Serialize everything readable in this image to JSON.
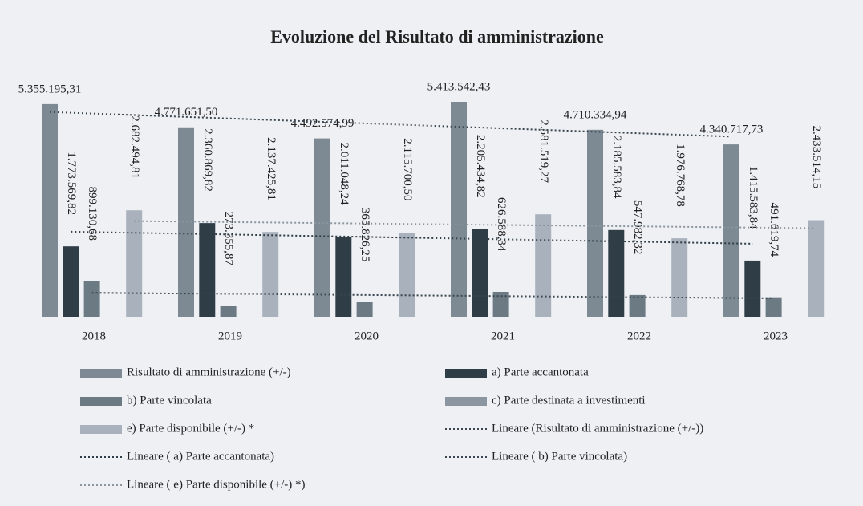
{
  "chart_data": {
    "type": "bar",
    "title": "Evoluzione del Risultato di amministrazione",
    "categories": [
      "2018",
      "2019",
      "2020",
      "2021",
      "2022",
      "2023"
    ],
    "series": [
      {
        "name": "Risultato di amministrazione (+/-)",
        "color": "#7d8a93",
        "values": [
          5355195.31,
          4771651.5,
          4492574.99,
          5413542.43,
          4710334.94,
          4340717.73
        ],
        "value_labels": [
          "5.355.195,31",
          "4.771.651,50",
          "4.492.574,99",
          "5.413.542,43",
          "4.710.334,94",
          "4.340.717,73"
        ]
      },
      {
        "name": "a) Parte accantonata",
        "color": "#2f3d47",
        "values": [
          1773569.82,
          2360869.82,
          2011048.24,
          2205434.82,
          2185583.84,
          1415583.84
        ],
        "value_labels": [
          "1.773.569,82",
          "2.360.869,82",
          "2.011.048,24",
          "2.205.434,82",
          "2.185.583,84",
          "1.415.583,84"
        ]
      },
      {
        "name": "b) Parte vincolata",
        "color": "#6c7a84",
        "values": [
          899130.68,
          273355.87,
          365826.25,
          626588.34,
          547982.32,
          491619.74
        ],
        "value_labels": [
          "899.130,68",
          "273.355,87",
          "365.826,25",
          "626.588,34",
          "547.982,32",
          "491.619,74"
        ]
      },
      {
        "name": "c) Parte destinata a investimenti",
        "color": "#8c96a0",
        "values": [
          null,
          null,
          null,
          null,
          null,
          null
        ]
      },
      {
        "name": "e) Parte disponibile (+/-) *",
        "color": "#a8b1bc",
        "values": [
          2682494.81,
          2137425.81,
          2115700.5,
          2581519.27,
          1976768.78,
          2433514.15
        ],
        "value_labels": [
          "2.682.494,81",
          "2.137.425,81",
          "2.115.700,50",
          "2.581.519,27",
          "1.976.768,78",
          "2.433.514,15"
        ]
      }
    ],
    "trendlines": [
      {
        "name": "Lineare (Risultato di amministrazione (+/-))",
        "series": 0,
        "color": "#3a4650"
      },
      {
        "name": "Lineare ( a) Parte accantonata)",
        "series": 1,
        "color": "#2f3d47"
      },
      {
        "name": "Lineare ( b) Parte vincolata)",
        "series": 2,
        "color": "#3a4650"
      },
      {
        "name": "Lineare ( e) Parte disponibile (+/-) *)",
        "series": 4,
        "color": "#8c96a0"
      }
    ]
  }
}
